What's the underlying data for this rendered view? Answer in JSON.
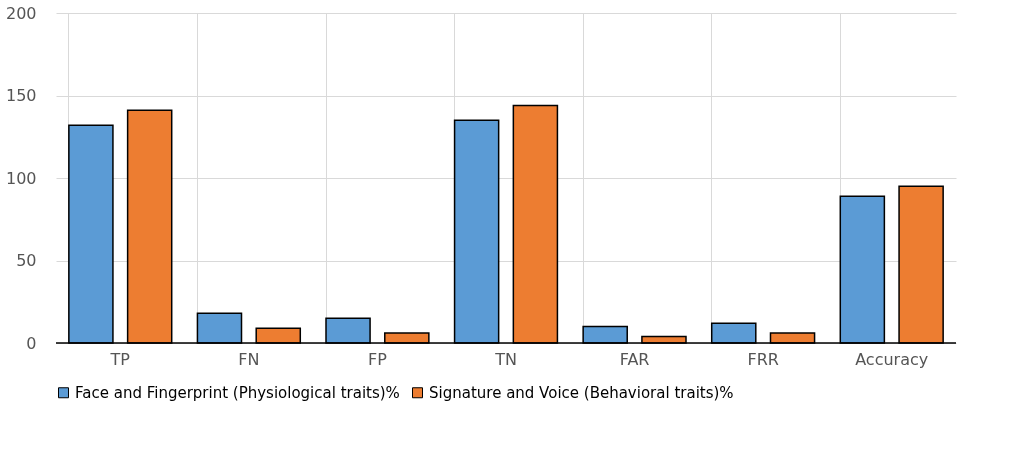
{
  "chart_data": {
    "type": "bar",
    "categories": [
      "TP",
      "FN",
      "FP",
      "TN",
      "FAR",
      "FRR",
      "Accuracy"
    ],
    "series": [
      {
        "name": "Face and Fingerprint (Physiological traits)%",
        "color": "#5b9bd5",
        "values": [
          132,
          18,
          15,
          135,
          10,
          12,
          89
        ]
      },
      {
        "name": "Signature and Voice (Behavioral traits)%",
        "color": "#ed7d31",
        "values": [
          141,
          9,
          6,
          144,
          4,
          6,
          95
        ]
      }
    ],
    "ylim": [
      0,
      200
    ],
    "yticks": [
      0,
      50,
      100,
      150,
      200
    ],
    "grid": true,
    "legend": "bottom"
  }
}
